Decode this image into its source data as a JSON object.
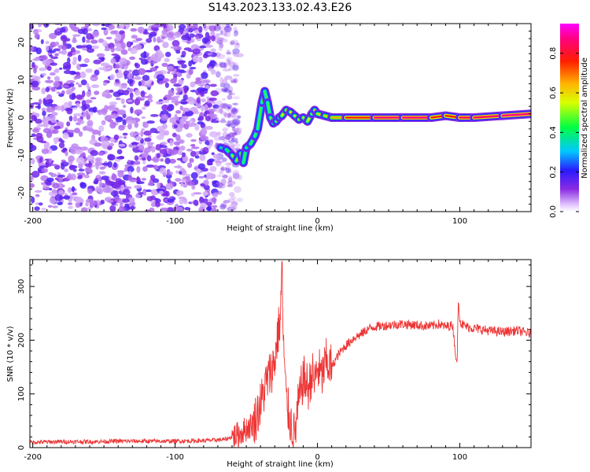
{
  "title": "S143.2023.133.02.43.E26",
  "chart_data": [
    {
      "type": "heatmap",
      "xlabel": "Height of straight line (km)",
      "ylabel": "Frequency (Hz)",
      "xlim": [
        -202,
        150
      ],
      "ylim": [
        -25,
        25
      ],
      "x_ticks": [
        -200,
        -100,
        0,
        100
      ],
      "y_ticks": [
        -20,
        -10,
        0,
        10,
        20
      ],
      "colorbar": {
        "label": "Normalized spectral amplitude",
        "range": [
          0.0,
          0.95
        ],
        "ticks": [
          0.0,
          0.2,
          0.4,
          0.6,
          0.8
        ],
        "colormap": "rainbow (white-violet-blue-cyan-green-yellow-red-magenta)"
      },
      "noise_region_x": [
        -202,
        -60
      ],
      "ridge": {
        "x": [
          -68,
          -64,
          -60,
          -57,
          -54,
          -52,
          -50,
          -47,
          -44,
          -42,
          -39,
          -37,
          -35,
          -33,
          -31,
          -29,
          -27,
          -25,
          -22,
          -19,
          -16,
          -13,
          -10,
          -7,
          -4,
          -2,
          0,
          5,
          10,
          20,
          40,
          60,
          80,
          90,
          100,
          110,
          130,
          150
        ],
        "y": [
          -8,
          -8.5,
          -10,
          -11.5,
          -9.5,
          -12,
          -8,
          -7,
          -5,
          -3,
          4,
          7,
          4,
          0,
          -1.5,
          -1,
          0,
          0.5,
          2,
          1.5,
          0.5,
          -0.5,
          0,
          -1,
          1,
          2,
          1,
          0.5,
          0,
          0,
          0,
          0,
          0,
          0.5,
          0,
          0,
          0.5,
          1
        ],
        "amplitude": [
          0.35,
          0.4,
          0.45,
          0.55,
          0.45,
          0.5,
          0.4,
          0.45,
          0.45,
          0.45,
          0.45,
          0.45,
          0.45,
          0.45,
          0.5,
          0.5,
          0.5,
          0.55,
          0.6,
          0.6,
          0.55,
          0.55,
          0.6,
          0.55,
          0.55,
          0.55,
          0.6,
          0.6,
          0.62,
          0.7,
          0.85,
          0.9,
          0.85,
          0.7,
          0.85,
          0.85,
          0.85,
          0.92
        ]
      }
    },
    {
      "type": "line",
      "xlabel": "Height of straight line (km)",
      "ylabel": "SNR (10 * v/v)",
      "xlim": [
        -202,
        150
      ],
      "ylim": [
        0,
        350
      ],
      "x_ticks": [
        -200,
        -100,
        0,
        100
      ],
      "y_ticks": [
        0,
        100,
        200,
        300
      ],
      "color": "#ee3333",
      "x": [
        -202,
        -180,
        -160,
        -140,
        -120,
        -100,
        -80,
        -65,
        -55,
        -45,
        -40,
        -36,
        -33,
        -30,
        -28,
        -26,
        -25,
        -24,
        -22,
        -20,
        -18,
        -16,
        -14,
        -12,
        -10,
        -8,
        -6,
        -4,
        -2,
        0,
        3,
        6,
        10,
        14,
        18,
        22,
        26,
        30,
        35,
        40,
        50,
        60,
        70,
        80,
        85,
        90,
        95,
        98,
        99,
        100,
        101,
        105,
        110,
        120,
        130,
        140,
        150
      ],
      "y": [
        10,
        11,
        11,
        12,
        12,
        12,
        13,
        15,
        25,
        45,
        80,
        120,
        140,
        160,
        210,
        240,
        345,
        200,
        90,
        60,
        40,
        20,
        70,
        100,
        130,
        120,
        110,
        140,
        120,
        150,
        130,
        160,
        150,
        170,
        185,
        195,
        205,
        210,
        220,
        225,
        228,
        230,
        228,
        226,
        230,
        225,
        228,
        150,
        280,
        240,
        230,
        225,
        222,
        218,
        215,
        218,
        212
      ]
    }
  ]
}
